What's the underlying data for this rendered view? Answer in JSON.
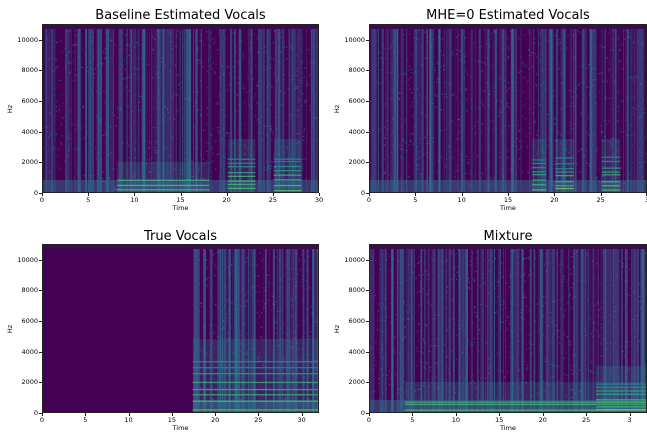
{
  "chart_data": [
    {
      "type": "heatmap",
      "title": "Baseline Estimated Vocals",
      "xlabel": "Time",
      "ylabel": "Hz",
      "xlim": [
        0,
        30
      ],
      "ylim": [
        0,
        11025
      ],
      "xticks": [
        "0",
        "5",
        "10",
        "15",
        "20",
        "25",
        "30"
      ],
      "yticks": [
        "0",
        "2000",
        "4000",
        "6000",
        "8000",
        "10000"
      ],
      "colormap": "viridis",
      "bright_regions": [
        [
          8,
          18,
          "low"
        ],
        [
          20,
          23,
          "mid"
        ],
        [
          25,
          28,
          "mid"
        ]
      ]
    },
    {
      "type": "heatmap",
      "title": "MHE=0 Estimated Vocals",
      "xlabel": "Time",
      "ylabel": "Hz",
      "xlim": [
        0,
        30
      ],
      "ylim": [
        0,
        11025
      ],
      "xticks": [
        "0",
        "5",
        "10",
        "15",
        "20",
        "25",
        "3"
      ],
      "yticks": [
        "0",
        "2000",
        "4000",
        "6000",
        "8000",
        "10000"
      ],
      "colormap": "viridis",
      "bright_regions": [
        [
          17.5,
          19,
          "mid"
        ],
        [
          20,
          22,
          "mid"
        ],
        [
          25,
          27,
          "mid"
        ]
      ]
    },
    {
      "type": "heatmap",
      "title": "True Vocals",
      "xlabel": "Time",
      "ylabel": "Hz",
      "xlim": [
        0,
        32
      ],
      "ylim": [
        0,
        11025
      ],
      "xticks": [
        "0",
        "5",
        "10",
        "15",
        "20",
        "25",
        "30"
      ],
      "yticks": [
        "0",
        "2000",
        "4000",
        "6000",
        "8000",
        "10000"
      ],
      "colormap": "viridis",
      "silent_until": 17.3
    },
    {
      "type": "heatmap",
      "title": "Mixture",
      "xlabel": "Time",
      "ylabel": "Hz",
      "xlim": [
        0,
        32
      ],
      "ylim": [
        0,
        11025
      ],
      "xticks": [
        "0",
        "5",
        "10",
        "15",
        "20",
        "25",
        "3"
      ],
      "yticks": [
        "0",
        "2000",
        "4000",
        "6000",
        "8000",
        "10000"
      ],
      "colormap": "viridis"
    }
  ]
}
